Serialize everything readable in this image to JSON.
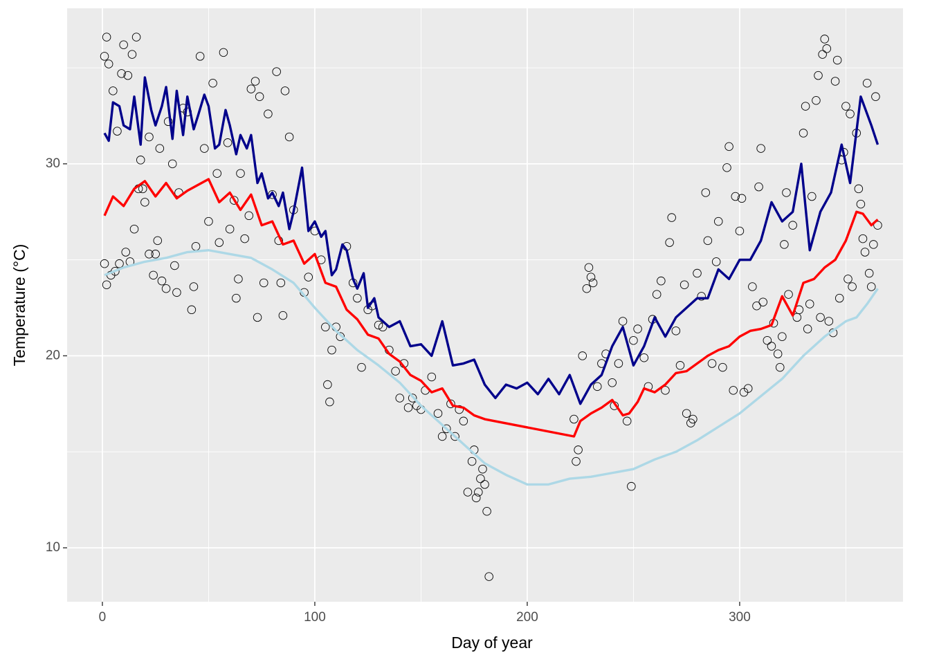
{
  "chart_data": {
    "type": "line",
    "x_label": "Day of year",
    "y_label": "Temperature (°C)",
    "xlim": [
      -16.6,
      376.9
    ],
    "ylim": [
      7.19,
      38.1
    ],
    "xticks": [
      0,
      100,
      200,
      300
    ],
    "yticks": [
      10,
      20,
      30
    ],
    "x_minor_grid": [
      50,
      150,
      250,
      350
    ],
    "y_minor_grid": [
      15,
      25,
      35
    ],
    "grid": true,
    "background": "#EBEBEB",
    "series": [
      {
        "type": "line",
        "color": "#ADD8E6",
        "x": [
          1,
          10,
          20,
          30,
          40,
          50,
          60,
          70,
          80,
          90,
          100,
          110,
          120,
          130,
          140,
          150,
          160,
          170,
          180,
          190,
          200,
          210,
          220,
          230,
          240,
          250,
          260,
          270,
          280,
          290,
          300,
          310,
          320,
          330,
          340,
          350,
          355,
          360,
          365
        ],
        "values": [
          24.2,
          24.6,
          24.9,
          25.1,
          25.4,
          25.5,
          25.3,
          25.1,
          24.5,
          23.8,
          22.5,
          21.3,
          20.3,
          19.5,
          18.6,
          17.4,
          16.4,
          15.4,
          14.4,
          13.8,
          13.3,
          13.3,
          13.6,
          13.7,
          13.9,
          14.1,
          14.6,
          15.0,
          15.6,
          16.3,
          17.0,
          17.9,
          18.8,
          20.0,
          21.0,
          21.8,
          22.0,
          22.7,
          23.5
        ]
      },
      {
        "type": "line",
        "color": "#FF0000",
        "x": [
          1,
          5,
          10,
          15,
          20,
          25,
          30,
          35,
          40,
          45,
          50,
          55,
          60,
          65,
          70,
          75,
          80,
          85,
          90,
          95,
          100,
          105,
          110,
          115,
          120,
          125,
          130,
          135,
          140,
          145,
          150,
          155,
          160,
          165,
          170,
          175,
          180,
          222,
          225,
          230,
          235,
          240,
          245,
          248,
          252,
          255,
          260,
          265,
          270,
          275,
          280,
          285,
          290,
          295,
          300,
          305,
          310,
          315,
          320,
          325,
          330,
          335,
          340,
          345,
          350,
          355,
          358,
          362,
          365
        ],
        "values": [
          27.3,
          28.3,
          27.8,
          28.7,
          29.1,
          28.3,
          29.0,
          28.2,
          28.6,
          28.9,
          29.2,
          28.0,
          28.5,
          27.6,
          28.4,
          26.8,
          27.0,
          25.8,
          26.0,
          24.8,
          25.3,
          23.8,
          23.6,
          22.4,
          21.9,
          21.1,
          20.9,
          20.1,
          19.7,
          19.0,
          18.7,
          18.1,
          18.3,
          17.4,
          17.3,
          16.9,
          16.7,
          15.8,
          16.6,
          17.0,
          17.3,
          17.7,
          16.9,
          17.0,
          17.6,
          18.3,
          18.1,
          18.5,
          19.1,
          19.2,
          19.6,
          20.0,
          20.3,
          20.5,
          21.0,
          21.3,
          21.4,
          21.6,
          23.1,
          22.1,
          23.8,
          24.0,
          24.6,
          25.0,
          26.0,
          27.5,
          27.4,
          26.8,
          27.1
        ]
      },
      {
        "type": "line",
        "color": "#00008B",
        "x": [
          1,
          3,
          5,
          8,
          10,
          13,
          15,
          18,
          20,
          23,
          25,
          28,
          30,
          33,
          35,
          38,
          40,
          43,
          45,
          48,
          50,
          53,
          55,
          58,
          60,
          63,
          65,
          68,
          70,
          73,
          75,
          78,
          80,
          83,
          85,
          88,
          90,
          94,
          97,
          100,
          103,
          105,
          108,
          110,
          113,
          115,
          118,
          120,
          123,
          125,
          128,
          130,
          135,
          140,
          145,
          150,
          155,
          160,
          165,
          170,
          175,
          180,
          185,
          190,
          195,
          200,
          205,
          210,
          215,
          220,
          225,
          230,
          235,
          240,
          245,
          250,
          255,
          260,
          265,
          270,
          275,
          280,
          285,
          290,
          295,
          300,
          305,
          310,
          315,
          320,
          325,
          329,
          333,
          338,
          343,
          348,
          352,
          357,
          362,
          365
        ],
        "values": [
          31.6,
          31.2,
          33.2,
          33.0,
          32.0,
          31.8,
          33.5,
          31.0,
          34.5,
          32.8,
          32.0,
          33.0,
          34.0,
          31.3,
          33.8,
          31.5,
          33.5,
          31.8,
          32.5,
          33.6,
          33.0,
          30.8,
          31.0,
          32.8,
          32.0,
          30.5,
          31.5,
          30.8,
          31.5,
          29.0,
          29.5,
          28.2,
          28.5,
          27.8,
          28.5,
          26.6,
          27.5,
          29.8,
          26.5,
          27.0,
          26.2,
          26.5,
          24.2,
          24.5,
          25.8,
          25.5,
          24.0,
          23.5,
          24.3,
          22.5,
          23.0,
          22.0,
          21.5,
          21.8,
          20.5,
          20.6,
          20.0,
          21.8,
          19.5,
          19.6,
          19.8,
          18.5,
          17.8,
          18.5,
          18.3,
          18.6,
          18.0,
          18.8,
          18.0,
          19.0,
          17.5,
          18.5,
          19.0,
          20.5,
          21.5,
          19.5,
          20.5,
          22.0,
          21.0,
          22.0,
          22.5,
          23.0,
          23.0,
          24.5,
          24.0,
          25.0,
          25.0,
          26.0,
          28.0,
          27.0,
          27.5,
          30.0,
          25.5,
          27.5,
          28.5,
          31.0,
          29.0,
          33.5,
          32.0,
          31.0
        ]
      },
      {
        "type": "scatter",
        "color": "#000000",
        "x": [
          1,
          1,
          2,
          2,
          3,
          4,
          5,
          6,
          7,
          8,
          9,
          10,
          11,
          12,
          13,
          14,
          15,
          16,
          17,
          18,
          19,
          20,
          22,
          22,
          24,
          25,
          26,
          27,
          28,
          30,
          31,
          33,
          34,
          35,
          36,
          38,
          40,
          42,
          43,
          44,
          46,
          48,
          50,
          52,
          54,
          55,
          57,
          59,
          60,
          62,
          63,
          64,
          65,
          67,
          69,
          70,
          72,
          73,
          74,
          76,
          78,
          80,
          82,
          83,
          84,
          85,
          86,
          88,
          90,
          95,
          97,
          100,
          103,
          105,
          106,
          107,
          108,
          110,
          112,
          115,
          118,
          120,
          122,
          125,
          127,
          130,
          132,
          135,
          138,
          140,
          142,
          144,
          146,
          148,
          150,
          152,
          155,
          158,
          160,
          162,
          164,
          166,
          168,
          170,
          172,
          174,
          175,
          176,
          177,
          178,
          179,
          180,
          181,
          182,
          222,
          223,
          224,
          226,
          228,
          229,
          230,
          231,
          233,
          235,
          237,
          240,
          241,
          243,
          245,
          247,
          249,
          250,
          252,
          255,
          257,
          259,
          261,
          263,
          265,
          267,
          268,
          270,
          272,
          274,
          275,
          277,
          278,
          280,
          282,
          284,
          285,
          287,
          289,
          290,
          292,
          294,
          295,
          297,
          298,
          300,
          301,
          302,
          304,
          306,
          308,
          309,
          310,
          311,
          313,
          315,
          316,
          318,
          319,
          320,
          321,
          322,
          323,
          325,
          327,
          328,
          330,
          331,
          332,
          333,
          334,
          336,
          337,
          338,
          339,
          340,
          341,
          342,
          344,
          345,
          346,
          347,
          348,
          349,
          350,
          351,
          352,
          353,
          355,
          356,
          357,
          358,
          359,
          360,
          361,
          362,
          363,
          364,
          365
        ],
        "values": [
          35.6,
          24.8,
          36.6,
          23.7,
          35.2,
          24.2,
          33.8,
          24.4,
          31.7,
          24.8,
          34.7,
          36.2,
          25.4,
          34.6,
          24.9,
          35.7,
          26.6,
          36.6,
          28.7,
          30.2,
          28.7,
          28.0,
          31.4,
          25.3,
          24.2,
          25.3,
          26.0,
          30.8,
          23.9,
          23.5,
          32.2,
          30.0,
          24.7,
          23.3,
          28.5,
          32.9,
          32.7,
          22.4,
          23.6,
          25.7,
          35.6,
          30.8,
          27.0,
          34.2,
          29.5,
          25.9,
          35.8,
          31.1,
          26.6,
          28.1,
          23.0,
          24.0,
          29.5,
          26.1,
          27.3,
          33.9,
          34.3,
          22.0,
          33.5,
          23.8,
          32.6,
          28.4,
          34.8,
          26.0,
          23.8,
          22.1,
          33.8,
          31.4,
          27.6,
          23.3,
          24.1,
          26.5,
          25.0,
          21.5,
          18.5,
          17.6,
          20.3,
          21.5,
          21.0,
          25.7,
          23.8,
          23.0,
          19.4,
          22.4,
          22.6,
          21.6,
          21.5,
          20.3,
          19.2,
          17.8,
          19.6,
          17.3,
          17.8,
          17.4,
          17.2,
          18.2,
          18.9,
          17.0,
          15.8,
          16.2,
          17.5,
          15.8,
          17.2,
          16.6,
          12.9,
          14.5,
          15.1,
          12.6,
          12.9,
          13.6,
          14.1,
          13.3,
          11.9,
          8.5,
          16.7,
          14.5,
          15.1,
          20.0,
          23.5,
          24.6,
          24.1,
          23.8,
          18.4,
          19.6,
          20.1,
          18.6,
          17.4,
          19.6,
          21.8,
          16.6,
          13.2,
          20.8,
          21.4,
          19.9,
          18.4,
          21.9,
          23.2,
          23.9,
          18.2,
          25.9,
          27.2,
          21.3,
          19.5,
          23.7,
          17.0,
          16.5,
          16.7,
          24.3,
          23.1,
          28.5,
          26.0,
          19.6,
          24.9,
          27.0,
          19.4,
          29.8,
          30.9,
          18.2,
          28.3,
          26.5,
          28.2,
          18.1,
          18.3,
          23.6,
          22.6,
          28.8,
          30.8,
          22.8,
          20.8,
          20.5,
          21.7,
          20.1,
          19.4,
          21.0,
          25.8,
          28.5,
          23.2,
          26.8,
          22.0,
          22.4,
          31.6,
          33.0,
          21.4,
          22.7,
          28.3,
          33.3,
          34.6,
          22.0,
          35.7,
          36.5,
          36.0,
          21.8,
          21.2,
          34.3,
          35.4,
          23.0,
          30.2,
          30.6,
          33.0,
          24.0,
          32.6,
          23.6,
          31.6,
          28.7,
          27.9,
          26.1,
          25.4,
          34.2,
          24.3,
          23.6,
          25.8,
          33.5,
          26.8
        ]
      }
    ]
  }
}
